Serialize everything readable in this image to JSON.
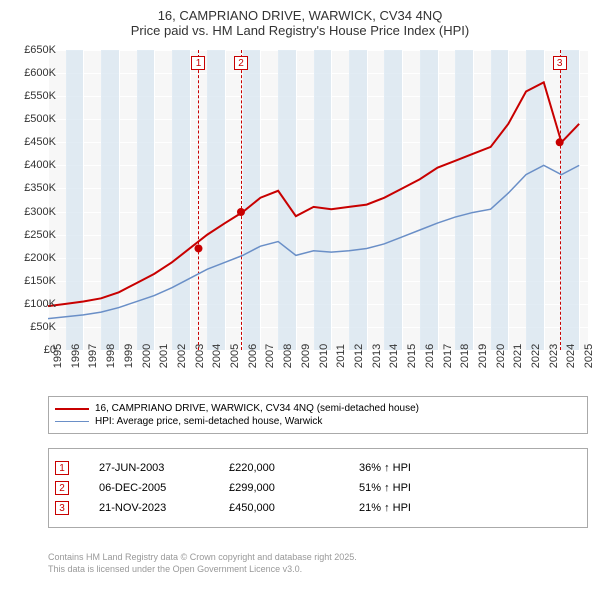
{
  "title_line1": "16, CAMPRIANO DRIVE, WARWICK, CV34 4NQ",
  "title_line2": "Price paid vs. HM Land Registry's House Price Index (HPI)",
  "chart": {
    "type": "line",
    "background_color": "#f7f7f7",
    "grid_color": "#ffffff",
    "band_color": "#d6e4f0",
    "x_years": [
      "1995",
      "1996",
      "1997",
      "1998",
      "1999",
      "2000",
      "2001",
      "2002",
      "2003",
      "2004",
      "2005",
      "2006",
      "2007",
      "2008",
      "2009",
      "2010",
      "2011",
      "2012",
      "2013",
      "2014",
      "2015",
      "2016",
      "2017",
      "2018",
      "2019",
      "2020",
      "2021",
      "2022",
      "2023",
      "2024",
      "2025"
    ],
    "xlim": [
      1995,
      2025.5
    ],
    "ylim": [
      0,
      650
    ],
    "ytick_step": 50,
    "yticks": [
      "£0",
      "£50K",
      "£100K",
      "£150K",
      "£200K",
      "£250K",
      "£300K",
      "£350K",
      "£400K",
      "£450K",
      "£500K",
      "£550K",
      "£600K",
      "£650K"
    ],
    "tick_fontsize": 11,
    "series": [
      {
        "label": "16, CAMPRIANO DRIVE, WARWICK, CV34 4NQ (semi-detached house)",
        "color": "#c80000",
        "line_width": 2,
        "values": [
          95,
          100,
          105,
          112,
          125,
          145,
          165,
          190,
          220,
          250,
          275,
          299,
          330,
          345,
          290,
          310,
          305,
          310,
          315,
          330,
          350,
          370,
          395,
          410,
          425,
          440,
          490,
          560,
          580,
          450,
          490
        ]
      },
      {
        "label": "HPI: Average price, semi-detached house, Warwick",
        "color": "#6a8fc7",
        "line_width": 1.5,
        "values": [
          68,
          72,
          76,
          82,
          92,
          105,
          118,
          135,
          155,
          175,
          190,
          205,
          225,
          235,
          205,
          215,
          212,
          215,
          220,
          230,
          245,
          260,
          275,
          288,
          298,
          305,
          340,
          380,
          400,
          380,
          400
        ]
      }
    ],
    "event_markers": [
      {
        "num": "1",
        "year": 2003.5,
        "y": 220
      },
      {
        "num": "2",
        "year": 2005.9,
        "y": 299
      },
      {
        "num": "3",
        "year": 2023.9,
        "y": 450
      }
    ],
    "marker_color": "#c80000",
    "marker_dash": "dashed"
  },
  "legend": {
    "items": [
      {
        "color": "#c80000",
        "width": 2,
        "label": "16, CAMPRIANO DRIVE, WARWICK, CV34 4NQ (semi-detached house)"
      },
      {
        "color": "#6a8fc7",
        "width": 1.5,
        "label": "HPI: Average price, semi-detached house, Warwick"
      }
    ]
  },
  "info_table": {
    "rows": [
      {
        "num": "1",
        "date": "27-JUN-2003",
        "price": "£220,000",
        "delta": "36% ↑ HPI"
      },
      {
        "num": "2",
        "date": "06-DEC-2005",
        "price": "£299,000",
        "delta": "51% ↑ HPI"
      },
      {
        "num": "3",
        "date": "21-NOV-2023",
        "price": "£450,000",
        "delta": "21% ↑ HPI"
      }
    ]
  },
  "footer_line1": "Contains HM Land Registry data © Crown copyright and database right 2025.",
  "footer_line2": "This data is licensed under the Open Government Licence v3.0."
}
